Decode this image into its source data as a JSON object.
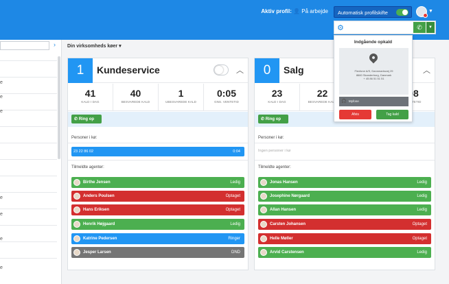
{
  "topbar": {
    "profile_label": "Aktiv profil:",
    "profile_value": "På arbejde",
    "auto_profile_label": "Automatisk profilskifte"
  },
  "header": {
    "queues_dropdown": "Din virksomheds køer ▾"
  },
  "left_panel": {
    "chars": [
      "e",
      "e",
      "e",
      "e",
      "e",
      "e",
      "e"
    ]
  },
  "queues": [
    {
      "number": "1",
      "name": "Kundeservice",
      "stats": [
        {
          "value": "41",
          "label": "KALD I DAG"
        },
        {
          "value": "40",
          "label": "BESVAREDE KALD"
        },
        {
          "value": "1",
          "label": "UBESVAREDE KALD"
        },
        {
          "value": "0:05",
          "label": "GNS. VENTETID"
        }
      ],
      "ring_label": "Ring op",
      "persons_label": "Personer i kø:",
      "queue_person": {
        "number": "23 22 86 02",
        "time": "0:04"
      },
      "queue_empty": "",
      "agents_label": "Tilmeldte agenter:",
      "agents": [
        {
          "name": "Birthe Jensen",
          "status": "Ledig",
          "color": "#4caf50"
        },
        {
          "name": "Anders Poulsen",
          "status": "Optaget",
          "color": "#d32f2f"
        },
        {
          "name": "Hans Eriksen",
          "status": "Optaget",
          "color": "#d32f2f"
        },
        {
          "name": "Henrik Højgaard",
          "status": "Ledig",
          "color": "#4caf50"
        },
        {
          "name": "Katrine Pedersen",
          "status": "Ringer",
          "color": "#2196f3"
        },
        {
          "name": "Jesper Larsen",
          "status": "DND",
          "color": "#757575"
        }
      ]
    },
    {
      "number": "0",
      "name": "Salg",
      "stats": [
        {
          "value": "23",
          "label": "KALD I DAG"
        },
        {
          "value": "22",
          "label": "BESVAREDE KALD"
        },
        {
          "value": "",
          "label": ""
        },
        {
          "value": "08",
          "label": "VENTETID"
        }
      ],
      "ring_label": "Ring op",
      "persons_label": "Personer i kø:",
      "queue_person": null,
      "queue_empty": "Ingen personer i kø",
      "agents_label": "Tilmeldte agenter:",
      "agents": [
        {
          "name": "Jonas Hansen",
          "status": "Ledig",
          "color": "#4caf50"
        },
        {
          "name": "Josephine Nørgaard",
          "status": "Ledig",
          "color": "#4caf50"
        },
        {
          "name": "Allan Hansen",
          "status": "Ledig",
          "color": "#4caf50"
        },
        {
          "name": "Carsten Johansen",
          "status": "Optaget",
          "color": "#d32f2f"
        },
        {
          "name": "Helle Møller",
          "status": "Optaget",
          "color": "#d32f2f"
        },
        {
          "name": "Arvid Carstensen",
          "status": "Ledig",
          "color": "#4caf50"
        }
      ]
    }
  ],
  "incoming_call": {
    "title": "Indgående opkald",
    "address_line1": "Flexfone A/S, Dannmarksvej 29",
    "address_line2": "8660 Skanderborg, Danmark",
    "phone": "+ 45 86 51 51 51",
    "source": "Myfone",
    "decline_label": "Afvis",
    "accept_label": "Tag kald"
  }
}
